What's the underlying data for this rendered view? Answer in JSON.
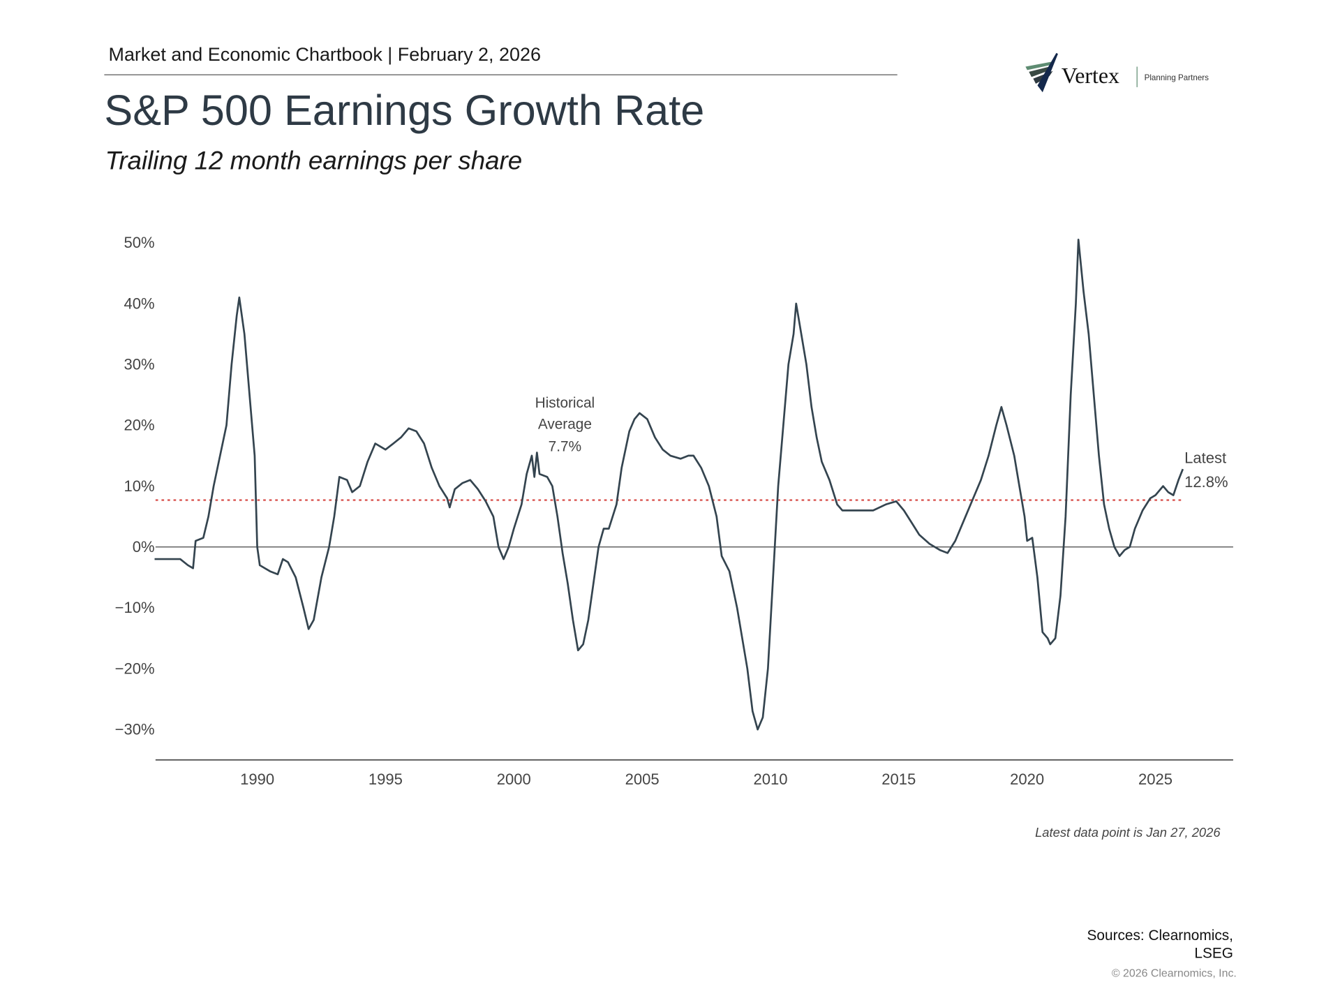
{
  "header": {
    "chartbook": "Market and Economic Chartbook | February 2, 2026"
  },
  "logo": {
    "name": "Vertex",
    "tagline": "Planning Partners",
    "colors": [
      "#5e8c72",
      "#3a4a44",
      "#2f3a40",
      "#14284b"
    ]
  },
  "title": "S&P 500 Earnings Growth Rate",
  "subtitle": "Trailing 12 month earnings per share",
  "footnote": "Latest data point is Jan 27, 2026",
  "sources": [
    "Sources: Clearnomics,",
    "LSEG"
  ],
  "copyright": "© 2026 Clearnomics, Inc.",
  "chart_data": {
    "type": "line",
    "title": "S&P 500 Earnings Growth Rate",
    "xlim": [
      1986,
      2028
    ],
    "ylim": [
      -35,
      52
    ],
    "x_ticks": [
      1990,
      1995,
      2000,
      2005,
      2010,
      2015,
      2020,
      2025
    ],
    "x_tick_labels": [
      "1990",
      "1995",
      "2000",
      "2005",
      "2010",
      "2015",
      "2020",
      "2025"
    ],
    "y_ticks": [
      50,
      40,
      30,
      20,
      10,
      0,
      -10,
      -20,
      -30
    ],
    "y_tick_labels": [
      "50%",
      "40%",
      "30%",
      "20%",
      "10%",
      "0%",
      "−10%",
      "−20%",
      "−30%"
    ],
    "grid": false,
    "line_color": "#34444f",
    "average": {
      "value": 7.7,
      "label": [
        "Historical",
        "Average",
        "7.7%"
      ],
      "color": "#d9534f"
    },
    "latest": {
      "value": 12.8,
      "label": [
        "Latest",
        "12.8%"
      ]
    },
    "series": [
      {
        "x": [
          1986.0,
          1986.5,
          1987.0,
          1987.3,
          1987.5,
          1987.6,
          1987.9,
          1988.1,
          1988.3,
          1988.5,
          1988.8,
          1989.0,
          1989.2,
          1989.3,
          1989.5,
          1989.7,
          1989.9,
          1990.0,
          1990.1,
          1990.5,
          1990.8,
          1991.0,
          1991.2,
          1991.5,
          1991.8,
          1992.0,
          1992.2,
          1992.5,
          1992.8,
          1993.0,
          1993.2,
          1993.5,
          1993.7,
          1994.0,
          1994.3,
          1994.6,
          1995.0,
          1995.3,
          1995.6,
          1995.9,
          1996.2,
          1996.5,
          1996.8,
          1997.1,
          1997.4,
          1997.5,
          1997.7,
          1998.0,
          1998.3,
          1998.6,
          1998.9,
          1999.2,
          1999.4,
          1999.6,
          1999.8,
          2000.0,
          2000.3,
          2000.5,
          2000.7,
          2000.8,
          2000.9,
          2001.0,
          2001.3,
          2001.5,
          2001.7,
          2001.9,
          2002.1,
          2002.3,
          2002.5,
          2002.7,
          2002.9,
          2003.1,
          2003.3,
          2003.5,
          2003.7,
          2004.0,
          2004.2,
          2004.5,
          2004.7,
          2004.9,
          2005.2,
          2005.5,
          2005.8,
          2006.1,
          2006.5,
          2006.8,
          2007.0,
          2007.3,
          2007.6,
          2007.9,
          2008.1,
          2008.4,
          2008.7,
          2008.9,
          2009.1,
          2009.3,
          2009.5,
          2009.7,
          2009.9,
          2010.1,
          2010.3,
          2010.5,
          2010.7,
          2010.9,
          2011.0,
          2011.2,
          2011.4,
          2011.6,
          2011.8,
          2012.0,
          2012.3,
          2012.6,
          2012.8,
          2013.0,
          2013.5,
          2014.0,
          2014.5,
          2014.9,
          2015.2,
          2015.5,
          2015.8,
          2016.2,
          2016.6,
          2016.9,
          2017.2,
          2017.6,
          2017.9,
          2018.2,
          2018.5,
          2018.8,
          2019.0,
          2019.2,
          2019.5,
          2019.7,
          2019.9,
          2020.0,
          2020.2,
          2020.4,
          2020.6,
          2020.8,
          2020.9,
          2021.1,
          2021.3,
          2021.5,
          2021.7,
          2021.9,
          2022.0,
          2022.2,
          2022.4,
          2022.6,
          2022.8,
          2023.0,
          2023.2,
          2023.4,
          2023.6,
          2023.8,
          2024.0,
          2024.2,
          2024.5,
          2024.8,
          2025.0,
          2025.3,
          2025.5,
          2025.7,
          2025.9,
          2026.07
        ],
        "y": [
          -2,
          -2,
          -2,
          -3,
          -3.5,
          1,
          1.5,
          5,
          10,
          14,
          20,
          30,
          38,
          41,
          35,
          25,
          15,
          0,
          -3,
          -4,
          -4.5,
          -2,
          -2.5,
          -5,
          -10,
          -13.5,
          -12,
          -5,
          0,
          5,
          11.5,
          11,
          9,
          10,
          14,
          17,
          16,
          17,
          18,
          19.5,
          19,
          17,
          13,
          10,
          8,
          6.5,
          9.5,
          10.5,
          11,
          9.5,
          7.5,
          5,
          0,
          -2,
          0,
          3,
          7,
          12,
          15,
          11.5,
          15.5,
          12,
          11.5,
          10,
          5,
          -1,
          -6,
          -12,
          -17,
          -16,
          -12,
          -6,
          0,
          3,
          3,
          7,
          13,
          19,
          21,
          22,
          21,
          18,
          16,
          15,
          14.5,
          15,
          15,
          13,
          10,
          5,
          -1.5,
          -4,
          -10,
          -15,
          -20,
          -27,
          -30,
          -28,
          -20,
          -5,
          10,
          20,
          30,
          35,
          40,
          35,
          30,
          23,
          18,
          14,
          11,
          7,
          6,
          6,
          6,
          6,
          7,
          7.5,
          6,
          4,
          2,
          0.5,
          -0.5,
          -1,
          1,
          5,
          8,
          11,
          15,
          20,
          23,
          20,
          15,
          10,
          5,
          1,
          1.5,
          -5,
          -14,
          -15,
          -16,
          -15,
          -8,
          5,
          25,
          40,
          50.5,
          42,
          35,
          25,
          15,
          7,
          3,
          0,
          -1.5,
          -0.5,
          0,
          3,
          6,
          8,
          8.5,
          10,
          9,
          8.5,
          11,
          12.8
        ]
      }
    ]
  }
}
